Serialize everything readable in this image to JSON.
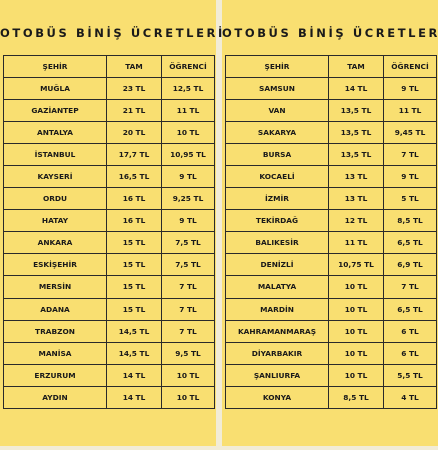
{
  "left": {
    "title": "OTOBÜS BİNİŞ ÜCRETLERİ",
    "headers": [
      "ŞEHİR",
      "TAM",
      "ÖĞRENCİ"
    ],
    "rows": [
      [
        "MUĞLA",
        "23 TL",
        "12,5 TL"
      ],
      [
        "GAZİANTEP",
        "21 TL",
        "11 TL"
      ],
      [
        "ANTALYA",
        "20 TL",
        "10 TL"
      ],
      [
        "İSTANBUL",
        "17,7 TL",
        "10,95 TL"
      ],
      [
        "KAYSERİ",
        "16,5 TL",
        "9 TL"
      ],
      [
        "ORDU",
        "16 TL",
        "9,25 TL"
      ],
      [
        "HATAY",
        "16 TL",
        "9 TL"
      ],
      [
        "ANKARA",
        "15 TL",
        "7,5 TL"
      ],
      [
        "ESKİŞEHİR",
        "15 TL",
        "7,5 TL"
      ],
      [
        "MERSİN",
        "15 TL",
        "7 TL"
      ],
      [
        "ADANA",
        "15 TL",
        "7 TL"
      ],
      [
        "TRABZON",
        "14,5 TL",
        "7 TL"
      ],
      [
        "MANİSA",
        "14,5 TL",
        "9,5 TL"
      ],
      [
        "ERZURUM",
        "14 TL",
        "10 TL"
      ],
      [
        "AYDIN",
        "14 TL",
        "10 TL"
      ]
    ]
  },
  "right": {
    "title": "OTOBÜS BİNİŞ ÜCRETLERİ",
    "headers": [
      "ŞEHİR",
      "TAM",
      "ÖĞRENCİ"
    ],
    "rows": [
      [
        "SAMSUN",
        "14 TL",
        "9 TL"
      ],
      [
        "VAN",
        "13,5 TL",
        "11 TL"
      ],
      [
        "SAKARYA",
        "13,5 TL",
        "9,45 TL"
      ],
      [
        "BURSA",
        "13,5 TL",
        "7 TL"
      ],
      [
        "KOCAELİ",
        "13 TL",
        "9 TL"
      ],
      [
        "İZMİR",
        "13 TL",
        "5 TL"
      ],
      [
        "TEKİRDAĞ",
        "12 TL",
        "8,5 TL"
      ],
      [
        "BALIKESİR",
        "11 TL",
        "6,5 TL"
      ],
      [
        "DENİZLİ",
        "10,75 TL",
        "6,9 TL"
      ],
      [
        "MALATYA",
        "10 TL",
        "7 TL"
      ],
      [
        "MARDİN",
        "10 TL",
        "6,5 TL"
      ],
      [
        "KAHRAMANMARAŞ",
        "10 TL",
        "6 TL"
      ],
      [
        "DİYARBAKIR",
        "10 TL",
        "6 TL"
      ],
      [
        "ŞANLIURFA",
        "10 TL",
        "5,5 TL"
      ],
      [
        "KONYA",
        "8,5 TL",
        "4 TL"
      ]
    ]
  }
}
